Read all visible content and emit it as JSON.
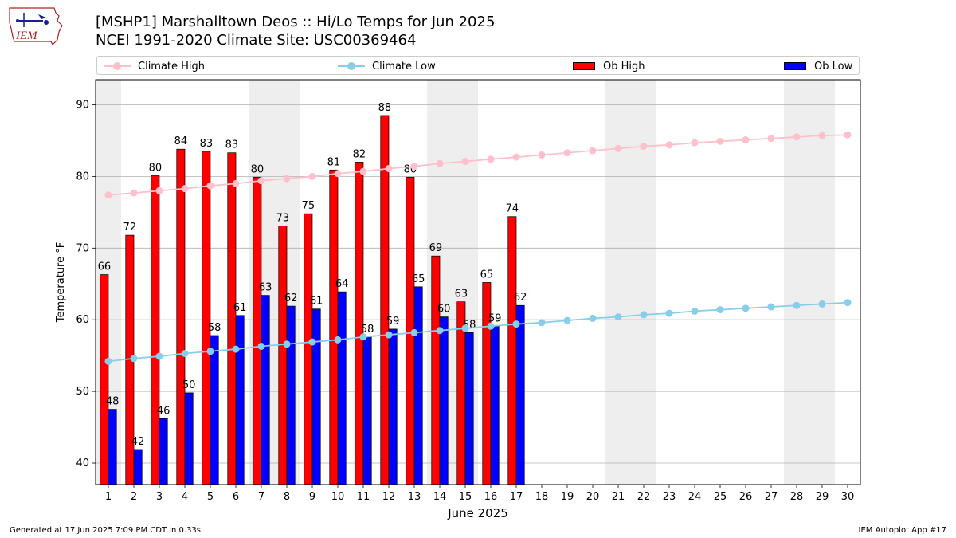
{
  "header": {
    "title_line1": "[MSHP1] Marshalltown Deos :: Hi/Lo Temps for Jun 2025",
    "title_line2": "NCEI 1991-2020 Climate Site: USC00369464",
    "logo_text": "IEM"
  },
  "legend": {
    "climate_high": "Climate High",
    "climate_low": "Climate Low",
    "ob_high": "Ob High",
    "ob_low": "Ob Low"
  },
  "footer": {
    "generated": "Generated at 17 Jun 2025 7:09 PM CDT in 0.33s",
    "app": "IEM Autoplot App #17"
  },
  "colors": {
    "climate_high": "#ffc0cb",
    "climate_low": "#87ceeb",
    "ob_high": "#ff0000",
    "ob_low": "#0000ff",
    "weekend_shade": "#eeeeee",
    "grid": "#b0b0b0"
  },
  "chart_data": {
    "type": "bar",
    "xlabel": "June 2025",
    "ylabel": "Temperature °F",
    "xlim": [
      0.5,
      30.5
    ],
    "ylim": [
      37,
      93.5
    ],
    "yticks": [
      40,
      50,
      60,
      70,
      80,
      90
    ],
    "grid": "horizontal",
    "legend_position": "top",
    "days": [
      1,
      2,
      3,
      4,
      5,
      6,
      7,
      8,
      9,
      10,
      11,
      12,
      13,
      14,
      15,
      16,
      17,
      18,
      19,
      20,
      21,
      22,
      23,
      24,
      25,
      26,
      27,
      28,
      29,
      30
    ],
    "weekend_spans": [
      [
        1,
        1
      ],
      [
        7,
        8
      ],
      [
        14,
        15
      ],
      [
        21,
        22
      ],
      [
        28,
        29
      ]
    ],
    "ob_high": [
      66.3,
      71.8,
      80.1,
      83.8,
      83.5,
      83.3,
      79.9,
      73.1,
      74.8,
      80.9,
      82.0,
      88.5,
      79.9,
      68.9,
      62.5,
      65.2,
      74.4
    ],
    "ob_high_labels": [
      "66",
      "72",
      "80",
      "84",
      "83",
      "83",
      "80",
      "73",
      "75",
      "81",
      "82",
      "88",
      "80",
      "69",
      "63",
      "65",
      "74"
    ],
    "ob_low": [
      47.5,
      41.9,
      46.2,
      49.8,
      57.8,
      60.6,
      63.4,
      61.9,
      61.5,
      63.9,
      57.6,
      58.7,
      64.6,
      60.4,
      58.2,
      59.1,
      62.0
    ],
    "ob_low_labels": [
      "48",
      "42",
      "46",
      "50",
      "58",
      "61",
      "63",
      "62",
      "61",
      "64",
      "58",
      "59",
      "65",
      "60",
      "58",
      "59",
      "62"
    ],
    "climate_high": [
      77.4,
      77.7,
      78.0,
      78.3,
      78.7,
      79.0,
      79.4,
      79.7,
      80.0,
      80.4,
      80.7,
      81.1,
      81.4,
      81.8,
      82.1,
      82.4,
      82.7,
      83.0,
      83.3,
      83.6,
      83.9,
      84.2,
      84.4,
      84.7,
      84.9,
      85.1,
      85.3,
      85.5,
      85.7,
      85.8
    ],
    "climate_low": [
      54.2,
      54.6,
      54.9,
      55.3,
      55.6,
      55.9,
      56.3,
      56.6,
      56.9,
      57.2,
      57.6,
      57.9,
      58.2,
      58.5,
      58.8,
      59.1,
      59.4,
      59.6,
      59.9,
      60.2,
      60.4,
      60.7,
      60.9,
      61.2,
      61.4,
      61.6,
      61.8,
      62.0,
      62.2,
      62.4
    ]
  }
}
